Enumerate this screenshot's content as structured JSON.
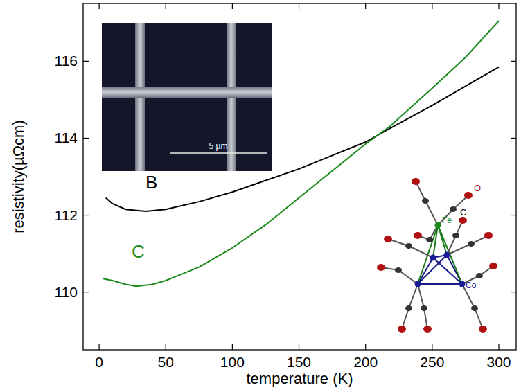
{
  "chart_data": {
    "type": "line",
    "x_label": "temperature (K)",
    "y_label": "resistivity(µΩcm)",
    "xlim": [
      -12,
      313
    ],
    "ylim": [
      108.5,
      117.5
    ],
    "xticks": [
      0,
      50,
      100,
      150,
      200,
      250,
      300
    ],
    "yticks": [
      110,
      112,
      114,
      116
    ],
    "grid": false,
    "annotations": [
      "5 µm",
      "O",
      "C",
      "Fe",
      "Co"
    ],
    "series": [
      {
        "name": "B",
        "color": "#000000",
        "line_style": "solid",
        "x": [
          5,
          10,
          20,
          35,
          50,
          75,
          100,
          125,
          150,
          175,
          200,
          218,
          250,
          275,
          300
        ],
        "values": [
          112.45,
          112.3,
          112.15,
          112.1,
          112.15,
          112.35,
          112.6,
          112.9,
          113.2,
          113.55,
          113.9,
          114.25,
          114.85,
          115.35,
          115.85
        ]
      },
      {
        "name": "C",
        "color": "#1a8a1a",
        "line_style": "solid",
        "x": [
          3,
          10,
          20,
          28,
          40,
          50,
          75,
          100,
          125,
          150,
          175,
          200,
          218,
          250,
          275,
          300
        ],
        "values": [
          110.35,
          110.3,
          110.2,
          110.15,
          110.2,
          110.3,
          110.65,
          111.15,
          111.75,
          112.45,
          113.15,
          113.85,
          114.3,
          115.3,
          116.1,
          117.05
        ]
      }
    ]
  }
}
